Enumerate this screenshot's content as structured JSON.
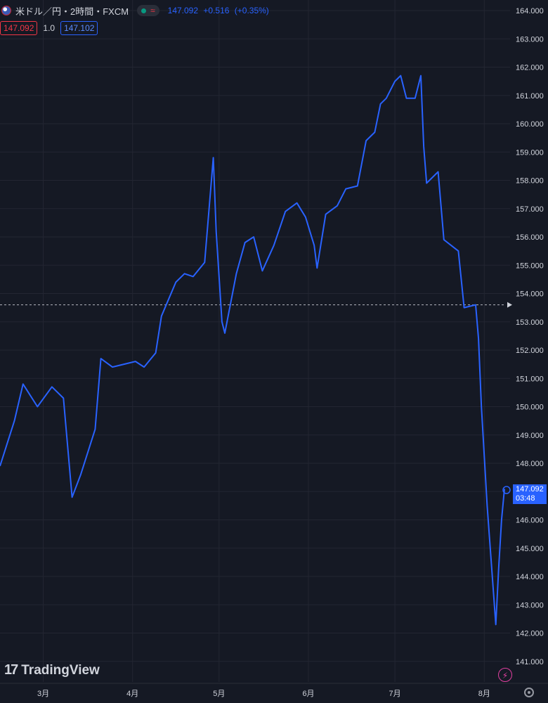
{
  "header": {
    "title": "米ドル／円・2時間・FXCM",
    "status_symbol": "≈",
    "last": "147.092",
    "change": "+0.516",
    "change_pct": "(+0.35%)"
  },
  "trade": {
    "sell": "147.092",
    "spread": "1.0",
    "buy": "147.102"
  },
  "price_tag": {
    "price": "147.092",
    "countdown": "03:48"
  },
  "brand": {
    "mark": "17",
    "name": "TradingView"
  },
  "colors": {
    "background": "#151924",
    "line": "#2962ff",
    "grid": "#232632",
    "sell": "#f23645",
    "buy": "#2962ff"
  },
  "chart_data": {
    "type": "line",
    "x_tick_labels": [
      "3月",
      "4月",
      "5月",
      "6月",
      "7月",
      "8月"
    ],
    "y_tick_labels": [
      "164.000",
      "163.000",
      "162.000",
      "161.000",
      "160.000",
      "159.000",
      "158.000",
      "157.000",
      "156.000",
      "155.000",
      "154.000",
      "153.000",
      "152.000",
      "151.000",
      "150.000",
      "149.000",
      "148.000",
      "147.000",
      "146.000",
      "145.000",
      "144.000",
      "143.000",
      "142.000",
      "141.000"
    ],
    "ylim": [
      140.5,
      164.3
    ],
    "reference_line": 153.6,
    "last_value": 147.092,
    "grid": true,
    "series": [
      {
        "x": [
          "2024-02-15",
          "2024-02-20",
          "2024-02-23",
          "2024-02-28",
          "2024-03-04",
          "2024-03-08",
          "2024-03-11",
          "2024-03-14",
          "2024-03-19",
          "2024-03-21",
          "2024-03-25",
          "2024-03-29",
          "2024-04-02",
          "2024-04-05",
          "2024-04-09",
          "2024-04-11",
          "2024-04-16",
          "2024-04-19",
          "2024-04-22",
          "2024-04-26",
          "2024-04-29",
          "2024-04-30",
          "2024-05-02",
          "2024-05-03",
          "2024-05-07",
          "2024-05-10",
          "2024-05-13",
          "2024-05-16",
          "2024-05-20",
          "2024-05-24",
          "2024-05-28",
          "2024-05-31",
          "2024-06-03",
          "2024-06-04",
          "2024-06-07",
          "2024-06-11",
          "2024-06-14",
          "2024-06-18",
          "2024-06-21",
          "2024-06-24",
          "2024-06-26",
          "2024-06-28",
          "2024-07-01",
          "2024-07-03",
          "2024-07-05",
          "2024-07-08",
          "2024-07-10",
          "2024-07-11",
          "2024-07-12",
          "2024-07-16",
          "2024-07-18",
          "2024-07-23",
          "2024-07-25",
          "2024-07-29",
          "2024-07-30",
          "2024-07-31",
          "2024-08-02",
          "2024-08-05",
          "2024-08-06",
          "2024-08-07",
          "2024-08-08"
        ],
        "values": [
          147.9,
          149.5,
          150.8,
          150.0,
          150.7,
          150.3,
          146.8,
          147.6,
          149.2,
          151.7,
          151.4,
          151.5,
          151.6,
          151.4,
          151.9,
          153.2,
          154.4,
          154.7,
          154.6,
          155.1,
          158.8,
          156.2,
          153.0,
          152.6,
          154.7,
          155.8,
          156.0,
          154.8,
          155.7,
          156.9,
          157.2,
          156.7,
          155.7,
          154.9,
          156.8,
          157.1,
          157.7,
          157.8,
          159.4,
          159.7,
          160.7,
          160.9,
          161.5,
          161.7,
          160.9,
          160.9,
          161.7,
          159.2,
          157.9,
          158.3,
          155.9,
          155.5,
          153.5,
          153.6,
          152.4,
          150.0,
          146.5,
          142.3,
          144.3,
          146.0,
          147.092
        ]
      }
    ]
  }
}
